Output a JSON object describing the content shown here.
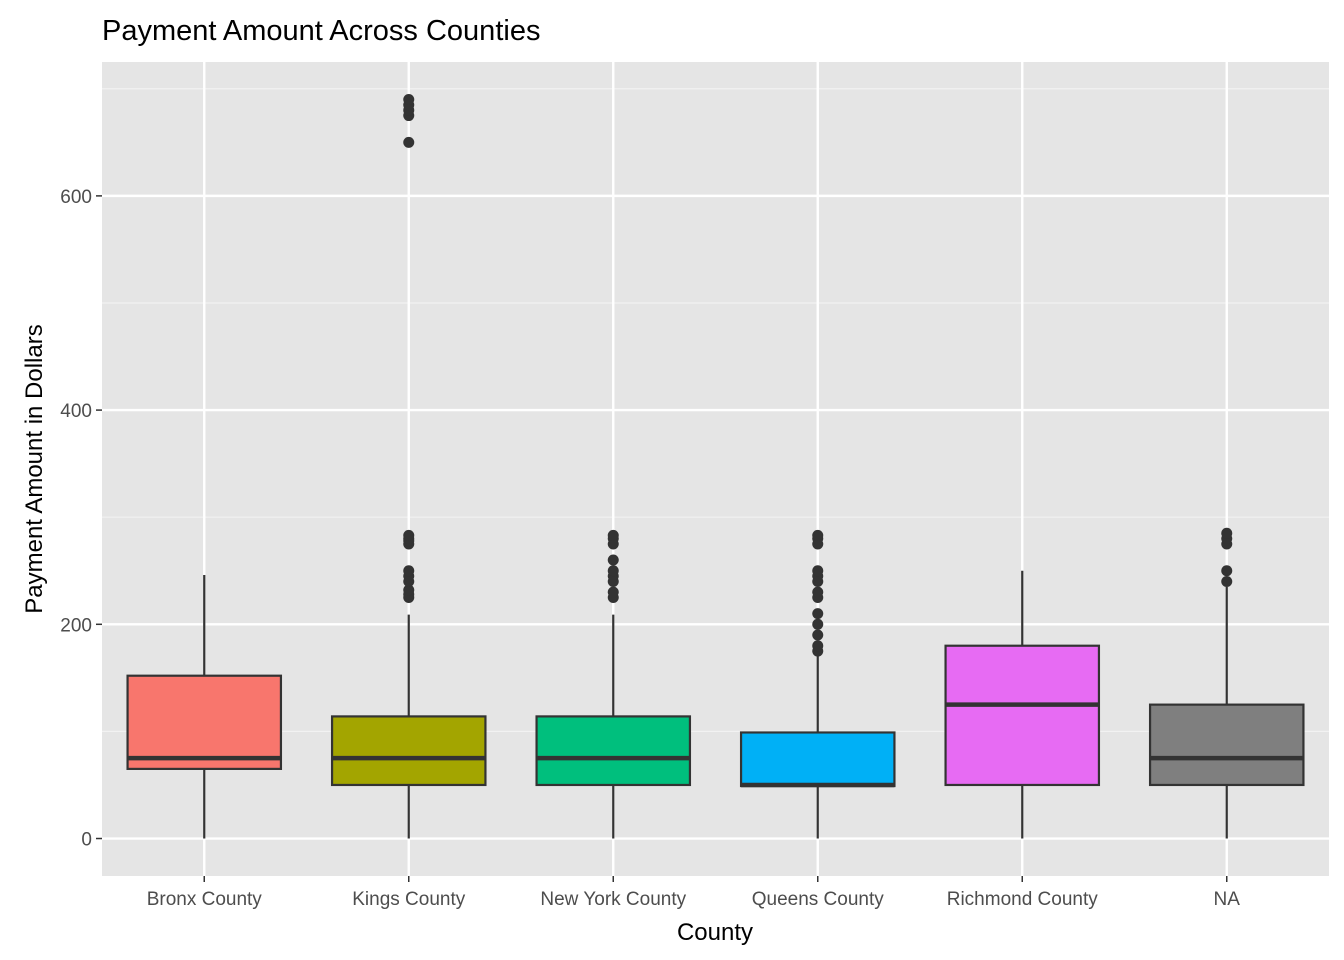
{
  "chart_data": {
    "type": "boxplot",
    "title": "Payment Amount Across Counties",
    "xlabel": "County",
    "ylabel": "Payment Amount in Dollars",
    "ylim": [
      -35,
      725
    ],
    "yticks": [
      0,
      200,
      400,
      600
    ],
    "grid": true,
    "legend": "none",
    "categories": [
      "Bronx County",
      "Kings County",
      "New York County",
      "Queens County",
      "Richmond County",
      "NA"
    ],
    "colors": [
      "#F8766D",
      "#A3A500",
      "#00BF7D",
      "#00B0F6",
      "#E76BF3",
      "#7F7F7F"
    ],
    "boxes": [
      {
        "min": 0,
        "q1": 65,
        "median": 75,
        "q3": 152,
        "max": 246,
        "outliers": []
      },
      {
        "min": 0,
        "q1": 50,
        "median": 75,
        "q3": 114,
        "max": 209,
        "outliers": [
          225,
          228,
          232,
          240,
          245,
          250,
          275,
          278,
          280,
          283,
          650,
          675,
          680,
          685,
          690
        ]
      },
      {
        "min": 0,
        "q1": 50,
        "median": 75,
        "q3": 114,
        "max": 209,
        "outliers": [
          225,
          230,
          240,
          245,
          250,
          260,
          275,
          280,
          283
        ]
      },
      {
        "min": 0,
        "q1": 49,
        "median": 50,
        "q3": 99,
        "max": 172,
        "outliers": [
          175,
          180,
          190,
          200,
          210,
          225,
          230,
          240,
          245,
          250,
          275,
          280,
          283
        ]
      },
      {
        "min": 0,
        "q1": 50,
        "median": 125,
        "q3": 180,
        "max": 250,
        "outliers": []
      },
      {
        "min": 0,
        "q1": 50,
        "median": 75,
        "q3": 125,
        "max": 235,
        "outliers": [
          240,
          250,
          275,
          280,
          285
        ]
      }
    ]
  }
}
